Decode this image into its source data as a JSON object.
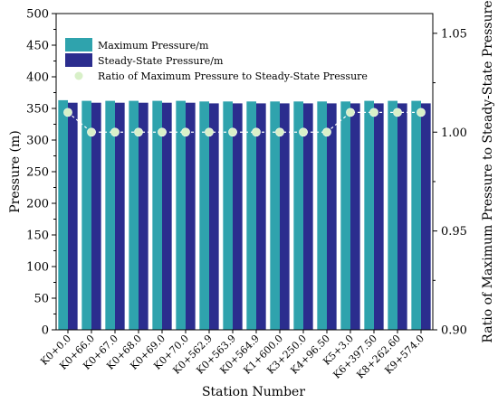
{
  "chart_data": {
    "type": "bar",
    "xlabel": "Station Number",
    "ylabel": "Pressure (m)",
    "y2label": "Ratio of Maximum Pressure to Steady-State Pressure",
    "ylim": [
      0,
      500
    ],
    "yticks": [
      0,
      50,
      100,
      150,
      200,
      250,
      300,
      350,
      400,
      450,
      500
    ],
    "y2lim": [
      0.9,
      1.06
    ],
    "y2ticks": [
      "0.90",
      "0.95",
      "1.00",
      "1.05"
    ],
    "y2tick_values": [
      0.9,
      0.95,
      1.0,
      1.05
    ],
    "categories": [
      "K0+0.0",
      "K0+66.0",
      "K0+67.0",
      "K0+68.0",
      "K0+69.0",
      "K0+70.0",
      "K0+562.9",
      "K0+563.9",
      "K0+564.9",
      "K1+600.0",
      "K3+250.0",
      "K4+96.50",
      "K5+3.0",
      "K6+397.50",
      "K8+262.60",
      "K9+574.0"
    ],
    "series": [
      {
        "name": "Maximum Pressure/m",
        "kind": "bar",
        "color": "#2fa3ad",
        "values": [
          363,
          362,
          362,
          362,
          362,
          362,
          361,
          361,
          361,
          361,
          361,
          361,
          361,
          362,
          362,
          362
        ]
      },
      {
        "name": "Steady-State Pressure/m",
        "kind": "bar",
        "color": "#2b2d8e",
        "values": [
          359,
          359,
          359,
          359,
          359,
          359,
          358,
          358,
          358,
          358,
          358,
          358,
          358,
          358,
          358,
          358
        ]
      },
      {
        "name": "Ratio of Maximum Pressure to Steady-State Pressure",
        "kind": "line",
        "axis": "right",
        "color": "#d8f0c8",
        "values": [
          1.01,
          1.0,
          1.0,
          1.0,
          1.0,
          1.0,
          1.0,
          1.0,
          1.0,
          1.0,
          1.0,
          1.0,
          1.01,
          1.01,
          1.01,
          1.01
        ]
      }
    ],
    "legend_position": "top-left",
    "grid": false
  }
}
